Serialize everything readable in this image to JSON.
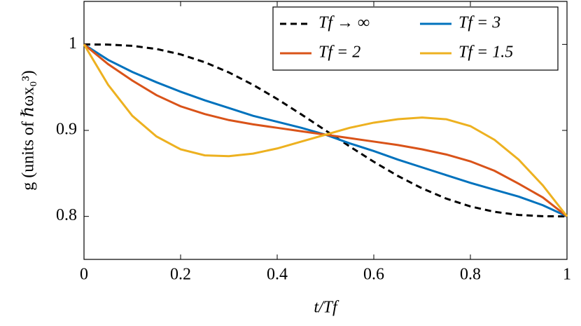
{
  "chart_data": {
    "type": "line",
    "x_label": "t/Tf",
    "y_label": "g (units of ℏωx₀³)",
    "x": [
      0,
      0.05,
      0.1,
      0.15,
      0.2,
      0.25,
      0.3,
      0.35,
      0.4,
      0.45,
      0.5,
      0.55,
      0.6,
      0.65,
      0.7,
      0.75,
      0.8,
      0.85,
      0.9,
      0.95,
      1
    ],
    "series": [
      {
        "name": "Tf → ∞",
        "color": "#000000",
        "dashed": true,
        "values": [
          1,
          0.9998,
          0.9983,
          0.9947,
          0.9884,
          0.9793,
          0.9674,
          0.953,
          0.9365,
          0.9186,
          0.9,
          0.8814,
          0.8635,
          0.847,
          0.8326,
          0.8207,
          0.8116,
          0.8053,
          0.8017,
          0.8002,
          0.8
        ]
      },
      {
        "name": "Tf = 3",
        "color": "#0072bd",
        "dashed": false,
        "values": [
          1,
          0.982,
          0.968,
          0.956,
          0.945,
          0.935,
          0.926,
          0.917,
          0.91,
          0.903,
          0.895,
          0.885,
          0.876,
          0.866,
          0.857,
          0.848,
          0.839,
          0.831,
          0.823,
          0.813,
          0.8
        ]
      },
      {
        "name": "Tf = 2",
        "color": "#d95319",
        "dashed": false,
        "values": [
          1,
          0.977,
          0.958,
          0.941,
          0.928,
          0.919,
          0.912,
          0.907,
          0.903,
          0.899,
          0.895,
          0.891,
          0.887,
          0.883,
          0.878,
          0.872,
          0.864,
          0.853,
          0.838,
          0.822,
          0.8
        ]
      },
      {
        "name": "Tf = 1.5",
        "color": "#edb120",
        "dashed": false,
        "values": [
          1,
          0.953,
          0.917,
          0.893,
          0.878,
          0.871,
          0.87,
          0.873,
          0.879,
          0.887,
          0.895,
          0.903,
          0.909,
          0.913,
          0.915,
          0.913,
          0.905,
          0.889,
          0.866,
          0.836,
          0.8
        ]
      }
    ],
    "xlim": [
      0,
      1
    ],
    "ylim": [
      0.75,
      1.05
    ],
    "xticks": [
      0,
      0.2,
      0.4,
      0.6,
      0.8,
      1
    ],
    "yticks": [
      0.8,
      0.9,
      1
    ],
    "legend_position": "upper right"
  }
}
